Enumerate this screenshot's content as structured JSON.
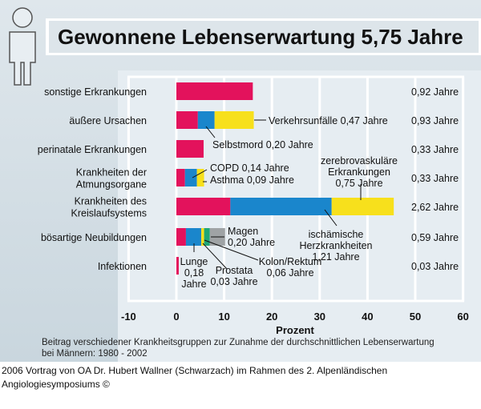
{
  "chart_data": {
    "type": "bar",
    "orientation": "horizontal",
    "stacked": true,
    "title": "Gewonnene Lebenserwartung 5,75 Jahre",
    "xlabel": "Prozent",
    "xlim": [
      -10,
      60
    ],
    "xticks": [
      "-10",
      "0",
      "10",
      "20",
      "30",
      "40",
      "50",
      "60"
    ],
    "grid": true,
    "caption": [
      "Beitrag verschiedener Krankheitsgruppen zur Zunahme der durchschnittlichen Lebenserwartung",
      "bei Männern: 1980 - 2002"
    ],
    "colors": {
      "red": "#e3125c",
      "blue": "#1a86cc",
      "yellow": "#f7e01c",
      "green": "#1fa777",
      "gray": "#9fa3a5"
    },
    "categories": [
      {
        "label": [
          "sonstige Erkrankungen"
        ],
        "total": "0,92 Jahre",
        "segments": [
          {
            "color": "red",
            "value": 16
          }
        ]
      },
      {
        "label": [
          "äußere Ursachen"
        ],
        "total": "0,93 Jahre",
        "segments": [
          {
            "color": "red",
            "value": 4.5
          },
          {
            "color": "blue",
            "value": 3.5
          },
          {
            "color": "yellow",
            "value": 8.2
          }
        ]
      },
      {
        "label": [
          "perinatale Erkrankungen"
        ],
        "total": "0,33 Jahre",
        "segments": [
          {
            "color": "red",
            "value": 5.7
          }
        ]
      },
      {
        "label": [
          "Krankheiten der",
          "Atmungsorgane"
        ],
        "total": "0,33 Jahre",
        "segments": [
          {
            "color": "red",
            "value": 1.8
          },
          {
            "color": "blue",
            "value": 2.5
          },
          {
            "color": "yellow",
            "value": 1.5
          }
        ]
      },
      {
        "label": [
          "Krankheiten des",
          "Kreislaufsystems"
        ],
        "total": "2,62 Jahre",
        "segments": [
          {
            "color": "red",
            "value": 11.3
          },
          {
            "color": "blue",
            "value": 21.2
          },
          {
            "color": "yellow",
            "value": 13
          }
        ]
      },
      {
        "label": [
          "bösartige Neubildungen"
        ],
        "total": "0,59 Jahre",
        "segments": [
          {
            "color": "red",
            "value": 2
          },
          {
            "color": "blue",
            "value": 3.2
          },
          {
            "color": "yellow",
            "value": 0.6
          },
          {
            "color": "green",
            "value": 1.2
          },
          {
            "color": "gray",
            "value": 3.2
          }
        ]
      },
      {
        "label": [
          "Infektionen"
        ],
        "total": "0,03 Jahre",
        "segments": [
          {
            "color": "red",
            "value": 0.5
          }
        ]
      }
    ],
    "annotations": [
      {
        "lines": [
          "Verkehrsunfälle 0,47 Jahre"
        ]
      },
      {
        "lines": [
          "Selbstmord 0,20 Jahre"
        ]
      },
      {
        "lines": [
          "COPD 0,14 Jahre"
        ]
      },
      {
        "lines": [
          "Asthma 0,09 Jahre"
        ]
      },
      {
        "lines": [
          "zerebrovaskuläre",
          "Erkrankungen",
          "0,75 Jahre"
        ]
      },
      {
        "lines": [
          "ischämische",
          "Herzkrankheiten",
          "1,21 Jahre"
        ]
      },
      {
        "lines": [
          "Magen",
          "0,20 Jahre"
        ]
      },
      {
        "lines": [
          "Lunge",
          "0,18",
          "Jahre"
        ]
      },
      {
        "lines": [
          "Prostata",
          "0,03 Jahre"
        ]
      },
      {
        "lines": [
          "Kolon/Rektum",
          "0,06 Jahre"
        ]
      }
    ]
  },
  "source": [
    "2006 Vortrag von OA Dr. Hubert Wallner (Schwarzach) im Rahmen des 2. Alpenländischen",
    "Angiologiesymposiums ©"
  ]
}
